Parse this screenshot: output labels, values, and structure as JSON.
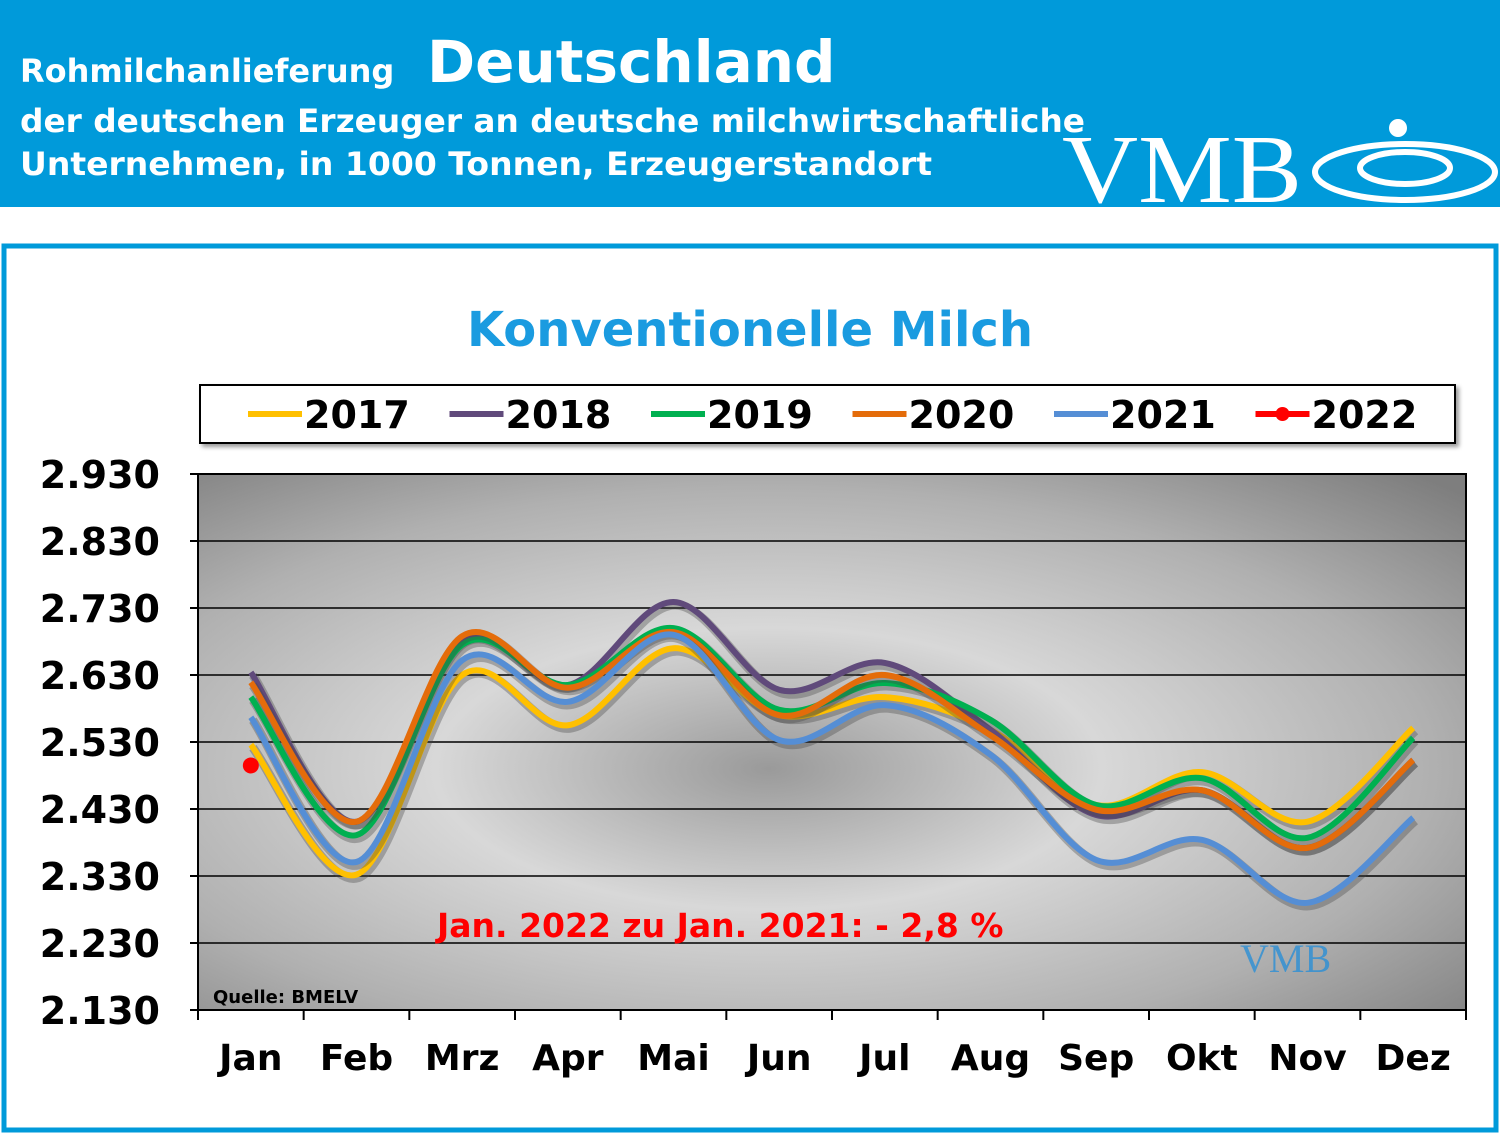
{
  "header": {
    "title_small": "Rohmilchanlieferung",
    "title_large": "Deutschland",
    "subtitle_1": "der deutschen Erzeuger an deutsche milchwirtschaftliche",
    "subtitle_2": "Unternehmen, in 1000 Tonnen, Erzeugerstandort",
    "logo": "VMB"
  },
  "chart_data": {
    "type": "line",
    "title": "Konventionelle Milch",
    "categories": [
      "Jan",
      "Feb",
      "Mrz",
      "Apr",
      "Mai",
      "Jun",
      "Jul",
      "Aug",
      "Sep",
      "Okt",
      "Nov",
      "Dez"
    ],
    "series": [
      {
        "name": "2017",
        "color": "#ffc000",
        "values": [
          2526,
          2332,
          2630,
          2555,
          2670,
          2570,
          2597,
          2548,
          2436,
          2485,
          2411,
          2551
        ]
      },
      {
        "name": "2018",
        "color": "#604a7b",
        "values": [
          2634,
          2411,
          2682,
          2615,
          2739,
          2608,
          2648,
          2548,
          2421,
          2458,
          2372,
          2503
        ]
      },
      {
        "name": "2019",
        "color": "#00b050",
        "values": [
          2597,
          2391,
          2675,
          2615,
          2700,
          2578,
          2618,
          2563,
          2436,
          2476,
          2387,
          2536
        ]
      },
      {
        "name": "2020",
        "color": "#e46c0a",
        "values": [
          2619,
          2411,
          2688,
          2611,
          2694,
          2570,
          2630,
          2540,
          2429,
          2458,
          2372,
          2503
        ]
      },
      {
        "name": "2021",
        "color": "#558ed5",
        "values": [
          2567,
          2351,
          2652,
          2590,
          2690,
          2533,
          2585,
          2511,
          2354,
          2384,
          2290,
          2417
        ]
      },
      {
        "name": "2022",
        "color": "#ff0000",
        "marker": "circle",
        "values": [
          2495,
          null,
          null,
          null,
          null,
          null,
          null,
          null,
          null,
          null,
          null,
          null
        ]
      }
    ],
    "ylim": [
      2130,
      2930
    ],
    "yticks": [
      {
        "value": 2130,
        "label": "2.130"
      },
      {
        "value": 2230,
        "label": "2.230"
      },
      {
        "value": 2330,
        "label": "2.330"
      },
      {
        "value": 2430,
        "label": "2.430"
      },
      {
        "value": 2530,
        "label": "2.530"
      },
      {
        "value": 2630,
        "label": "2.630"
      },
      {
        "value": 2730,
        "label": "2.730"
      },
      {
        "value": 2830,
        "label": "2.830"
      },
      {
        "value": 2930,
        "label": "2.930"
      }
    ],
    "grid": true,
    "legend": "top",
    "annotation": "Jan. 2022 zu Jan. 2021: - 2,8 %",
    "source": "Quelle: BMELV",
    "watermark": "VMB"
  }
}
